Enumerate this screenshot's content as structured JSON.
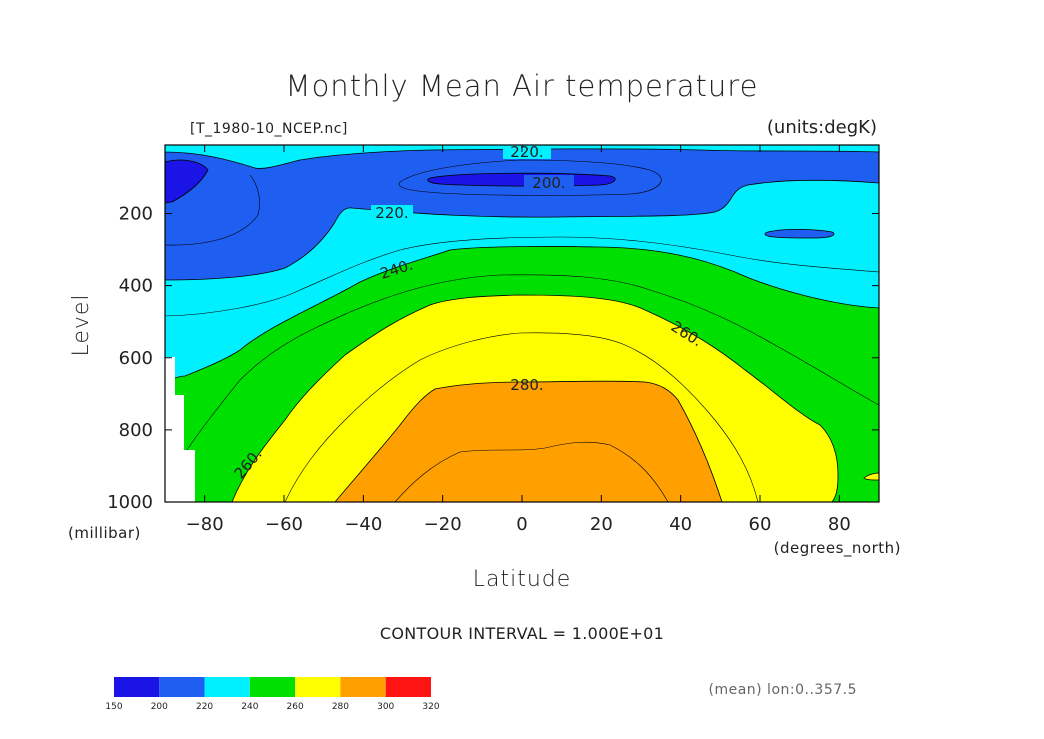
{
  "chart_data": {
    "type": "contour",
    "title": "Monthly Mean Air temperature",
    "file_label": "[T_1980-10_NCEP.nc]",
    "units_label": "(units:degK)",
    "xlabel": "Latitude",
    "xunits": "(degrees_north)",
    "ylabel": "Level",
    "yunits": "(millibar)",
    "xlim": [
      -90,
      90
    ],
    "ylim": [
      10,
      1000
    ],
    "y_inverted": true,
    "x_ticks": [
      "-80",
      "-60",
      "-40",
      "-20",
      "0",
      "20",
      "40",
      "60",
      "80"
    ],
    "y_ticks": [
      "200",
      "400",
      "600",
      "800",
      "1000"
    ],
    "contour_interval_text": "CONTOUR INTERVAL = 1.000E+01",
    "contour_labels": [
      "220.",
      "200.",
      "220.",
      "240.",
      "260.",
      "280.",
      "260."
    ],
    "averaging_text": "(mean) lon:0..357.5",
    "colorbar": {
      "levels": [
        "150",
        "200",
        "220",
        "240",
        "260",
        "280",
        "300",
        "320"
      ],
      "colors": [
        "#1a14e6",
        "#1e5ef0",
        "#00f0ff",
        "#00e000",
        "#ffff00",
        "#ffa000",
        "#ff1414"
      ]
    },
    "fill_colors": {
      "c150": "#1a14e6",
      "c200": "#1e5ef0",
      "c220": "#00f0ff",
      "c240": "#00e000",
      "c260": "#ffff00",
      "c280": "#ffa000"
    }
  }
}
